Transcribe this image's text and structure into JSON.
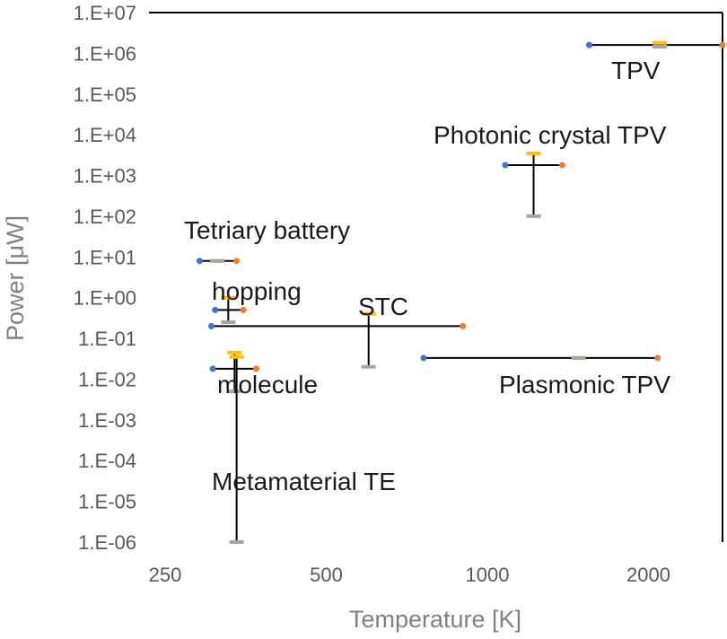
{
  "chart_data": {
    "type": "scatter",
    "xlabel": "Temperature [K]",
    "ylabel": "Power [μW]",
    "x_scale": "log",
    "y_scale": "log",
    "xlim": [
      250,
      2750
    ],
    "ylim": [
      1e-06,
      10000000.0
    ],
    "x_ticks": [
      250,
      500,
      1000,
      2000
    ],
    "x_tick_labels": [
      "250",
      "500",
      "1000",
      "2000"
    ],
    "y_ticks": [
      10000000.0,
      1000000.0,
      100000.0,
      10000.0,
      1000.0,
      100.0,
      10.0,
      1,
      0.1,
      0.01,
      0.001,
      0.0001,
      1e-05,
      1e-06
    ],
    "y_tick_labels": [
      "1.E+07",
      "1.E+06",
      "1.E+05",
      "1.E+04",
      "1.E+03",
      "1.E+02",
      "1.E+01",
      "1.E+00",
      "1.E-01",
      "1.E-02",
      "1.E-03",
      "1.E-04",
      "1.E-05",
      "1.E-06"
    ],
    "grid": false,
    "colors": {
      "low_temp_point": "#4472c4",
      "high_temp_point": "#ed7d31",
      "high_power_marker": "#ffc000",
      "low_power_marker": "#a5a5a5",
      "range_line": "#000000"
    },
    "technologies": [
      {
        "name": "TPV",
        "t_min": 1550,
        "t_max": 2750,
        "t_mark": 2100,
        "power": 1600000.0,
        "p_max": 1800000.0,
        "p_min": 1450000.0
      },
      {
        "name": "Photonic crystal TPV",
        "t_min": 1080,
        "t_max": 1380,
        "t_mark": 1220,
        "power": 1800.0,
        "p_max": 3500.0,
        "p_min": 100
      },
      {
        "name": "Tetriary battery",
        "t_min": 290,
        "t_max": 340,
        "t_mark": 313,
        "power": 8,
        "p_max": 8,
        "p_min": 8
      },
      {
        "name": "hopping",
        "t_min": 310,
        "t_max": 350,
        "t_mark": 328,
        "power": 0.5,
        "p_max": 1.0,
        "p_min": 0.25
      },
      {
        "name": "STC",
        "t_min": 305,
        "t_max": 900,
        "t_mark": 600,
        "power": 0.2,
        "p_max": 0.4,
        "p_min": 0.02
      },
      {
        "name": "molecule",
        "t_min": 307,
        "t_max": 370,
        "t_mark": 337,
        "power": 0.018,
        "p_max": 0.045,
        "p_min": 0.005
      },
      {
        "name": "Plasmonic TPV",
        "t_min": 760,
        "t_max": 2080,
        "t_mark": 1480,
        "power": 0.033,
        "p_max": 0.033,
        "p_min": 0.033
      },
      {
        "name": "Metamaterial TE",
        "t_min": 340,
        "t_max": 340,
        "t_mark": 340,
        "power": 0.035,
        "p_max": 0.035,
        "p_min": 1e-06
      }
    ]
  }
}
